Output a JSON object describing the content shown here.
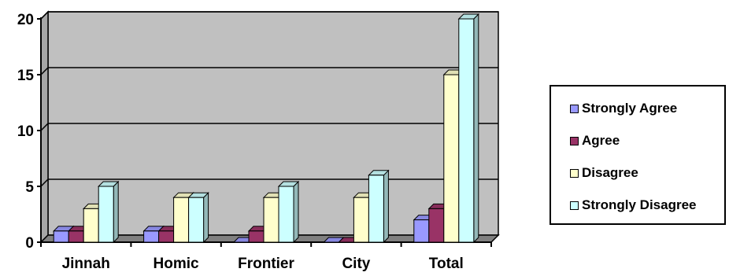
{
  "chart_data": {
    "type": "bar",
    "categories": [
      "Jinnah",
      "Homic",
      "Frontier",
      "City",
      "Total"
    ],
    "series": [
      {
        "name": "Strongly Agree",
        "values": [
          1,
          1,
          0,
          0,
          2
        ]
      },
      {
        "name": "Agree",
        "values": [
          1,
          1,
          1,
          0,
          3
        ]
      },
      {
        "name": "Disagree",
        "values": [
          3,
          4,
          4,
          4,
          15
        ]
      },
      {
        "name": "Strongly Disagree",
        "values": [
          5,
          4,
          5,
          6,
          20
        ]
      }
    ],
    "y_ticks": [
      "0",
      "5",
      "10",
      "15",
      "20"
    ],
    "ylim": [
      0,
      20
    ],
    "title": "",
    "xlabel": "",
    "ylabel": "",
    "grid": true,
    "legend_position": "right",
    "three_d": true,
    "colors": {
      "series": [
        "#9999ff",
        "#993366",
        "#ffffcc",
        "#ccffff"
      ],
      "plot_back": "#c0c0c0",
      "plot_side": "#a6a6a6",
      "plot_floor": "#808080"
    }
  }
}
